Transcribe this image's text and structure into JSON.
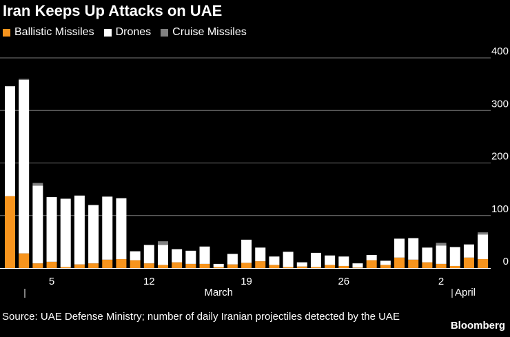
{
  "chart_data": {
    "type": "bar",
    "stacked": true,
    "title": "Iran Keeps Up Attacks on UAE",
    "legend": [
      {
        "name": "Ballistic Missiles",
        "color": "#f7941d"
      },
      {
        "name": "Drones",
        "color": "#ffffff"
      },
      {
        "name": "Cruise Missiles",
        "color": "#808080"
      }
    ],
    "ylim": [
      0,
      400
    ],
    "yticks": [
      0,
      100,
      200,
      300,
      400
    ],
    "grid": true,
    "x_ticks": [
      {
        "index": 3,
        "label": "5"
      },
      {
        "index": 10,
        "label": "12"
      },
      {
        "index": 17,
        "label": "19"
      },
      {
        "index": 24,
        "label": "26"
      },
      {
        "index": 31,
        "label": "2"
      }
    ],
    "month_labels": [
      {
        "label": "March",
        "index": 15
      },
      {
        "label": "April",
        "index": 31
      }
    ],
    "series": [
      {
        "name": "Ballistic Missiles",
        "color": "#f7941d",
        "values": [
          137,
          28,
          9,
          12,
          2,
          7,
          9,
          16,
          17,
          15,
          9,
          6,
          11,
          8,
          8,
          2,
          7,
          10,
          13,
          6,
          2,
          3,
          2,
          6,
          4,
          1,
          15,
          6,
          20,
          16,
          11,
          8,
          4,
          20,
          17
        ]
      },
      {
        "name": "Drones",
        "color": "#ffffff",
        "values": [
          209,
          330,
          148,
          123,
          130,
          131,
          111,
          120,
          116,
          17,
          35,
          38,
          25,
          25,
          33,
          6,
          20,
          44,
          26,
          16,
          29,
          8,
          27,
          18,
          18,
          8,
          10,
          8,
          36,
          41,
          28,
          35,
          36,
          25,
          47
        ]
      },
      {
        "name": "Cruise Missiles",
        "color": "#808080",
        "values": [
          0,
          2,
          5,
          0,
          0,
          0,
          0,
          0,
          0,
          0,
          0,
          7,
          0,
          0,
          0,
          0,
          0,
          0,
          0,
          0,
          0,
          0,
          0,
          0,
          0,
          0,
          0,
          0,
          0,
          0,
          0,
          5,
          0,
          0,
          4
        ]
      }
    ],
    "source": "Source: UAE Defense Ministry; number of daily Iranian projectiles detected by the UAE",
    "brand": "Bloomberg"
  }
}
